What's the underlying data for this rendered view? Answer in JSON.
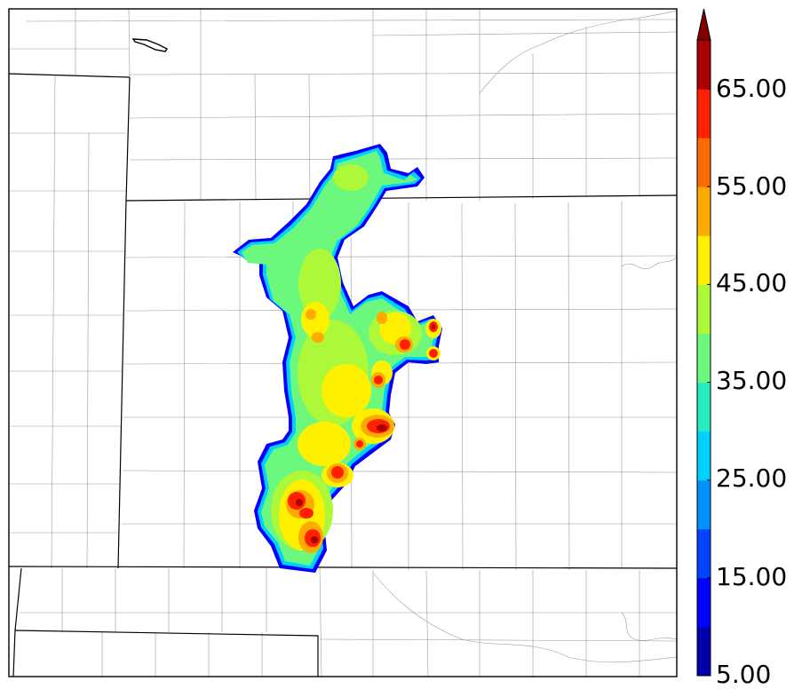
{
  "colorbar": {
    "ticks": [
      "5.00",
      "15.00",
      "25.00",
      "35.00",
      "45.00",
      "55.00",
      "65.00"
    ],
    "levels": [
      5,
      10,
      15,
      20,
      25,
      30,
      35,
      40,
      45,
      50,
      55,
      60,
      65,
      70
    ],
    "colors": [
      "#0000aa",
      "#0000ff",
      "#0044ff",
      "#0090ff",
      "#00d2ff",
      "#28ecc0",
      "#6cf87c",
      "#aef83a",
      "#fff000",
      "#ffaa00",
      "#ff6a00",
      "#ff2000",
      "#aa0000"
    ],
    "extend_color": "#800000",
    "extend": "max"
  },
  "map": {
    "background": "#ffffff",
    "state_border_color": "#000000",
    "county_border_color": "#999999"
  }
}
